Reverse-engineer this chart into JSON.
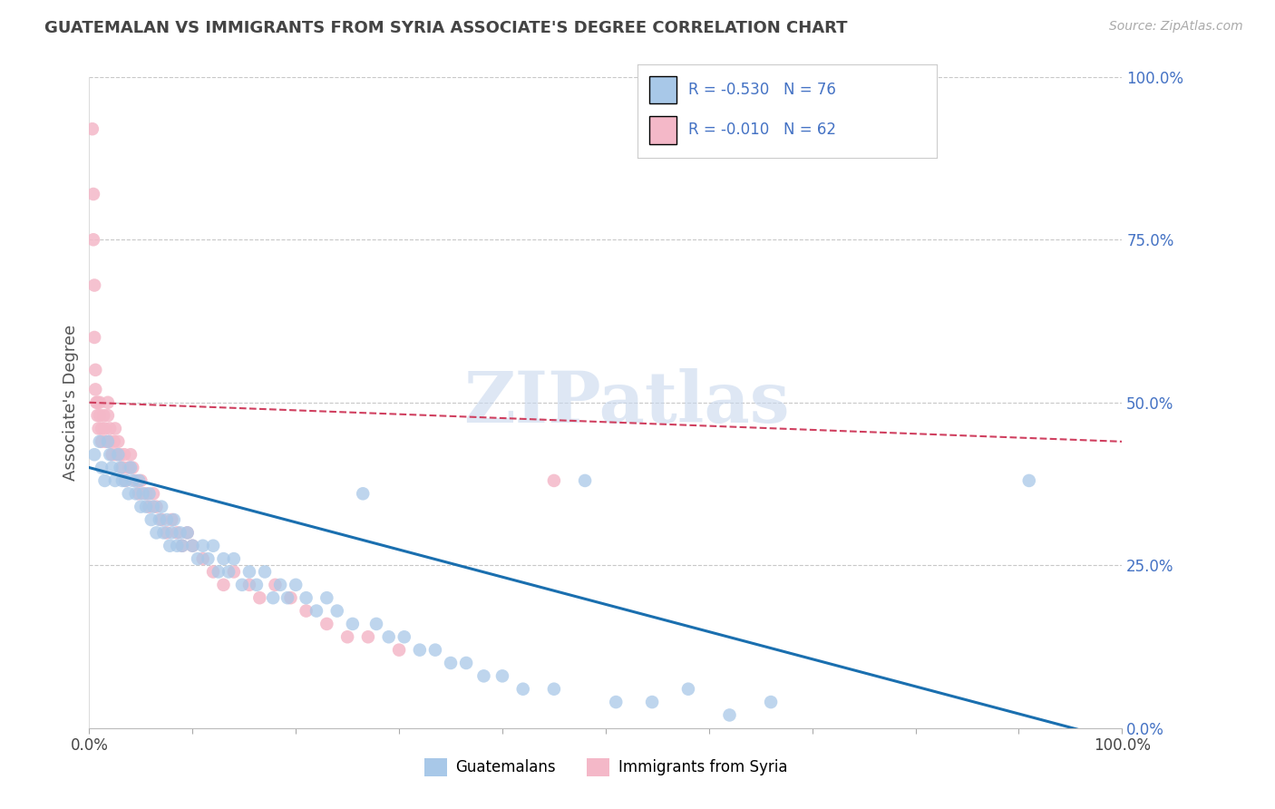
{
  "title": "GUATEMALAN VS IMMIGRANTS FROM SYRIA ASSOCIATE'S DEGREE CORRELATION CHART",
  "source": "Source: ZipAtlas.com",
  "ylabel": "Associate's Degree",
  "legend_label1": "Guatemalans",
  "legend_label2": "Immigrants from Syria",
  "watermark": "ZIPatlas",
  "blue_color": "#a8c8e8",
  "pink_color": "#f4b8c8",
  "blue_line_color": "#1a6faf",
  "pink_line_color": "#d04060",
  "background_color": "#ffffff",
  "grid_color": "#c8c8c8",
  "title_color": "#555555",
  "right_axis_color": "#4472c4",
  "legend_text_color": "#4472c4",
  "guatemalan_x": [
    0.005,
    0.01,
    0.012,
    0.015,
    0.018,
    0.02,
    0.022,
    0.025,
    0.028,
    0.03,
    0.032,
    0.035,
    0.038,
    0.04,
    0.042,
    0.045,
    0.048,
    0.05,
    0.052,
    0.055,
    0.058,
    0.06,
    0.062,
    0.065,
    0.068,
    0.07,
    0.072,
    0.075,
    0.078,
    0.08,
    0.082,
    0.085,
    0.088,
    0.09,
    0.095,
    0.1,
    0.105,
    0.11,
    0.115,
    0.12,
    0.125,
    0.13,
    0.135,
    0.14,
    0.148,
    0.155,
    0.162,
    0.17,
    0.178,
    0.185,
    0.192,
    0.2,
    0.21,
    0.22,
    0.23,
    0.24,
    0.255,
    0.265,
    0.278,
    0.29,
    0.305,
    0.32,
    0.335,
    0.35,
    0.365,
    0.382,
    0.4,
    0.42,
    0.45,
    0.48,
    0.51,
    0.545,
    0.58,
    0.62,
    0.66,
    0.91
  ],
  "guatemalan_y": [
    0.42,
    0.44,
    0.4,
    0.38,
    0.44,
    0.42,
    0.4,
    0.38,
    0.42,
    0.4,
    0.38,
    0.38,
    0.36,
    0.4,
    0.38,
    0.36,
    0.38,
    0.34,
    0.36,
    0.34,
    0.36,
    0.32,
    0.34,
    0.3,
    0.32,
    0.34,
    0.3,
    0.32,
    0.28,
    0.3,
    0.32,
    0.28,
    0.3,
    0.28,
    0.3,
    0.28,
    0.26,
    0.28,
    0.26,
    0.28,
    0.24,
    0.26,
    0.24,
    0.26,
    0.22,
    0.24,
    0.22,
    0.24,
    0.2,
    0.22,
    0.2,
    0.22,
    0.2,
    0.18,
    0.2,
    0.18,
    0.16,
    0.36,
    0.16,
    0.14,
    0.14,
    0.12,
    0.12,
    0.1,
    0.1,
    0.08,
    0.08,
    0.06,
    0.06,
    0.38,
    0.04,
    0.04,
    0.06,
    0.02,
    0.04,
    0.38
  ],
  "syria_x": [
    0.003,
    0.004,
    0.004,
    0.005,
    0.005,
    0.006,
    0.006,
    0.007,
    0.008,
    0.008,
    0.009,
    0.01,
    0.01,
    0.012,
    0.012,
    0.014,
    0.015,
    0.016,
    0.018,
    0.018,
    0.02,
    0.02,
    0.022,
    0.024,
    0.025,
    0.026,
    0.028,
    0.03,
    0.032,
    0.034,
    0.035,
    0.038,
    0.04,
    0.042,
    0.045,
    0.048,
    0.05,
    0.055,
    0.058,
    0.062,
    0.065,
    0.07,
    0.075,
    0.08,
    0.085,
    0.09,
    0.095,
    0.1,
    0.11,
    0.12,
    0.13,
    0.14,
    0.155,
    0.165,
    0.18,
    0.195,
    0.21,
    0.23,
    0.25,
    0.27,
    0.3,
    0.45
  ],
  "syria_y": [
    0.92,
    0.82,
    0.75,
    0.68,
    0.6,
    0.55,
    0.52,
    0.5,
    0.48,
    0.5,
    0.46,
    0.5,
    0.48,
    0.46,
    0.44,
    0.48,
    0.46,
    0.44,
    0.5,
    0.48,
    0.46,
    0.44,
    0.42,
    0.44,
    0.46,
    0.42,
    0.44,
    0.42,
    0.4,
    0.42,
    0.38,
    0.4,
    0.42,
    0.4,
    0.38,
    0.36,
    0.38,
    0.36,
    0.34,
    0.36,
    0.34,
    0.32,
    0.3,
    0.32,
    0.3,
    0.28,
    0.3,
    0.28,
    0.26,
    0.24,
    0.22,
    0.24,
    0.22,
    0.2,
    0.22,
    0.2,
    0.18,
    0.16,
    0.14,
    0.14,
    0.12,
    0.38
  ],
  "xlim": [
    0.0,
    1.0
  ],
  "ylim": [
    0.0,
    1.0
  ],
  "blue_trend_start_y": 0.4,
  "blue_trend_end_y": -0.02,
  "pink_trend_start_y": 0.5,
  "pink_trend_end_y": 0.44
}
